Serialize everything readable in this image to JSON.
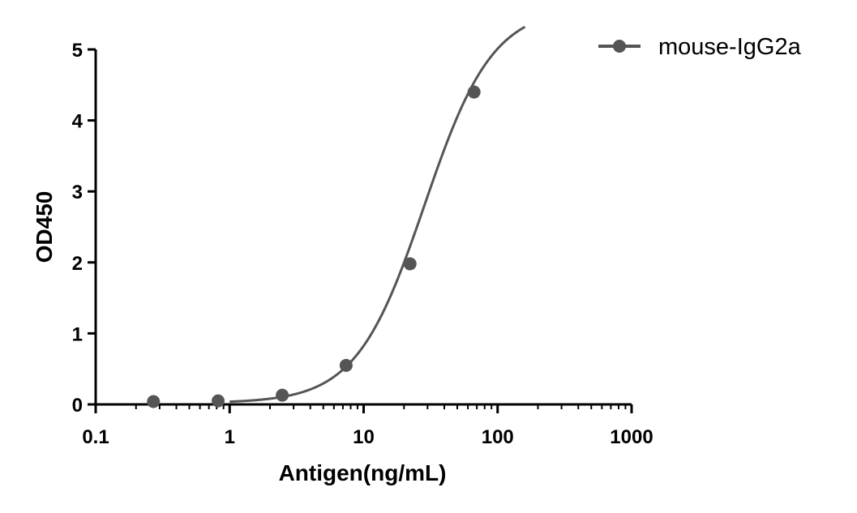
{
  "chart_data": {
    "type": "scatter",
    "title": "",
    "xlabel": "Antigen(ng/mL)",
    "ylabel": "OD450",
    "xscale": "log",
    "xlim": [
      0.1,
      1000
    ],
    "ylim": [
      0,
      5
    ],
    "xticks": [
      "0.1",
      "1",
      "10",
      "100",
      "1000"
    ],
    "xtick_values": [
      0.1,
      1,
      10,
      100,
      1000
    ],
    "yticks": [
      "0",
      "1",
      "2",
      "3",
      "4",
      "5"
    ],
    "ytick_values": [
      0,
      1,
      2,
      3,
      4,
      5
    ],
    "grid": false,
    "legend_position": "top-right",
    "series": [
      {
        "name": "mouse-IgG2a",
        "color": "#555555",
        "x": [
          0.27,
          0.82,
          2.47,
          7.4,
          22.2,
          66.7
        ],
        "y": [
          0.04,
          0.05,
          0.13,
          0.55,
          1.98,
          4.4
        ],
        "fit": {
          "model": "4PL",
          "bottom": 0.02,
          "top": 5.6,
          "ec50": 28.5,
          "hill": 1.7,
          "x_range": [
            1,
            160
          ]
        }
      }
    ]
  }
}
